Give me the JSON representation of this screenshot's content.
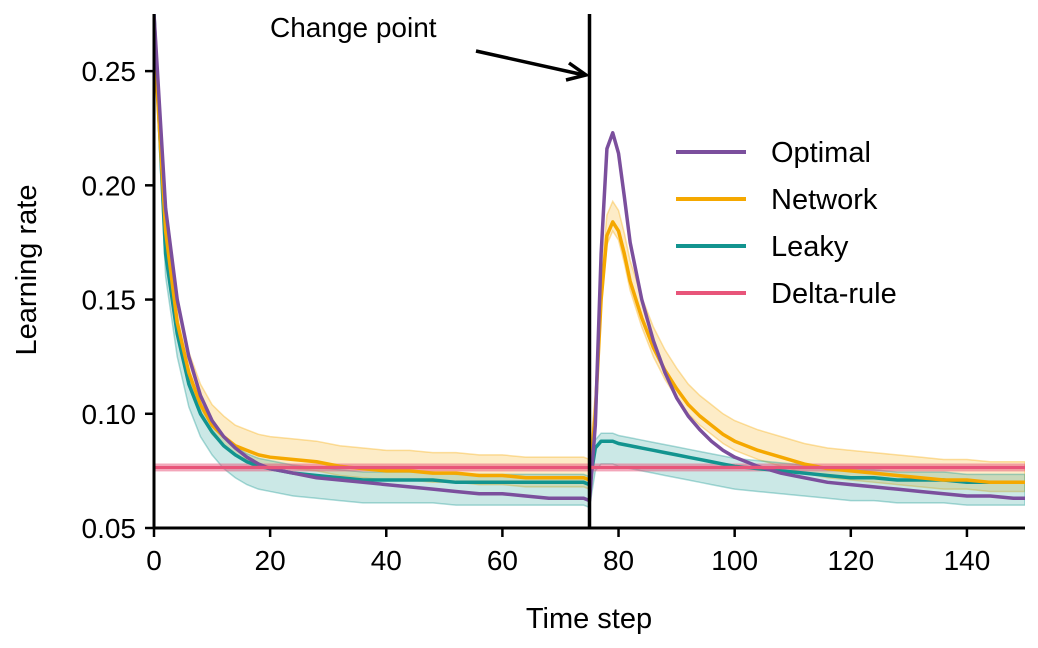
{
  "chart_data": {
    "type": "line",
    "xlabel": "Time step",
    "ylabel": "Learning rate",
    "xlim": [
      0,
      150
    ],
    "ylim": [
      0.05,
      0.275
    ],
    "xticks": [
      0,
      20,
      40,
      60,
      80,
      100,
      120,
      140
    ],
    "yticks": [
      0.05,
      0.1,
      0.15,
      0.2,
      0.25
    ],
    "ytick_labels": [
      "0.05",
      "0.10",
      "0.15",
      "0.20",
      "0.25"
    ],
    "grid": false,
    "legend_position": "right",
    "change_point": {
      "x": 75,
      "label": "Change point"
    },
    "series": [
      {
        "name": "Optimal",
        "color": "#7b4f9d",
        "x": [
          0,
          2,
          4,
          6,
          8,
          10,
          12,
          14,
          16,
          18,
          20,
          24,
          28,
          32,
          36,
          40,
          44,
          48,
          52,
          56,
          60,
          64,
          68,
          72,
          74,
          75,
          76,
          77,
          78,
          79,
          80,
          81,
          82,
          84,
          86,
          88,
          90,
          92,
          94,
          96,
          98,
          100,
          104,
          108,
          112,
          116,
          120,
          124,
          128,
          132,
          136,
          140,
          144,
          148,
          150
        ],
        "values": [
          0.275,
          0.19,
          0.15,
          0.125,
          0.108,
          0.097,
          0.09,
          0.085,
          0.081,
          0.078,
          0.076,
          0.074,
          0.072,
          0.071,
          0.07,
          0.069,
          0.068,
          0.067,
          0.066,
          0.065,
          0.065,
          0.064,
          0.063,
          0.063,
          0.063,
          0.062,
          0.095,
          0.17,
          0.216,
          0.223,
          0.214,
          0.195,
          0.175,
          0.15,
          0.132,
          0.118,
          0.107,
          0.099,
          0.093,
          0.088,
          0.084,
          0.081,
          0.077,
          0.074,
          0.072,
          0.07,
          0.069,
          0.068,
          0.067,
          0.066,
          0.065,
          0.064,
          0.064,
          0.063,
          0.063
        ]
      },
      {
        "name": "Network",
        "color": "#f5a800",
        "band": [
          0.004,
          0.009
        ],
        "x": [
          0,
          2,
          4,
          6,
          8,
          10,
          12,
          14,
          16,
          18,
          20,
          24,
          28,
          32,
          36,
          40,
          44,
          48,
          52,
          56,
          60,
          64,
          68,
          72,
          74,
          75,
          76,
          77,
          78,
          79,
          80,
          81,
          82,
          84,
          86,
          88,
          90,
          92,
          94,
          96,
          98,
          100,
          104,
          108,
          112,
          116,
          120,
          124,
          128,
          132,
          136,
          140,
          144,
          148,
          150
        ],
        "values": [
          0.265,
          0.18,
          0.14,
          0.118,
          0.104,
          0.095,
          0.09,
          0.086,
          0.084,
          0.082,
          0.081,
          0.08,
          0.079,
          0.077,
          0.076,
          0.075,
          0.075,
          0.074,
          0.074,
          0.073,
          0.073,
          0.072,
          0.072,
          0.072,
          0.072,
          0.071,
          0.1,
          0.15,
          0.178,
          0.184,
          0.18,
          0.17,
          0.158,
          0.142,
          0.129,
          0.119,
          0.111,
          0.104,
          0.099,
          0.095,
          0.091,
          0.088,
          0.084,
          0.081,
          0.078,
          0.076,
          0.075,
          0.074,
          0.073,
          0.072,
          0.071,
          0.071,
          0.07,
          0.07,
          0.07
        ]
      },
      {
        "name": "Leaky",
        "color": "#12948f",
        "band": [
          0.0035,
          0.01
        ],
        "x": [
          0,
          2,
          4,
          6,
          8,
          10,
          12,
          14,
          16,
          18,
          20,
          24,
          28,
          32,
          36,
          40,
          44,
          48,
          52,
          56,
          60,
          64,
          68,
          72,
          74,
          75,
          76,
          77,
          78,
          79,
          80,
          82,
          84,
          86,
          88,
          90,
          92,
          94,
          96,
          98,
          100,
          104,
          108,
          112,
          116,
          120,
          124,
          128,
          132,
          136,
          140,
          144,
          148,
          150
        ],
        "values": [
          0.275,
          0.17,
          0.135,
          0.113,
          0.1,
          0.092,
          0.086,
          0.082,
          0.079,
          0.077,
          0.076,
          0.074,
          0.073,
          0.072,
          0.071,
          0.071,
          0.071,
          0.071,
          0.07,
          0.07,
          0.07,
          0.07,
          0.07,
          0.07,
          0.07,
          0.069,
          0.085,
          0.088,
          0.088,
          0.088,
          0.087,
          0.086,
          0.085,
          0.084,
          0.083,
          0.082,
          0.081,
          0.08,
          0.079,
          0.078,
          0.077,
          0.076,
          0.075,
          0.074,
          0.073,
          0.072,
          0.072,
          0.071,
          0.071,
          0.071,
          0.07,
          0.07,
          0.07,
          0.07
        ]
      },
      {
        "name": "Delta-rule",
        "color": "#e8557a",
        "band": [
          0.0015,
          0.0015
        ],
        "x": [
          0,
          150
        ],
        "values": [
          0.0765,
          0.0765
        ]
      }
    ]
  }
}
